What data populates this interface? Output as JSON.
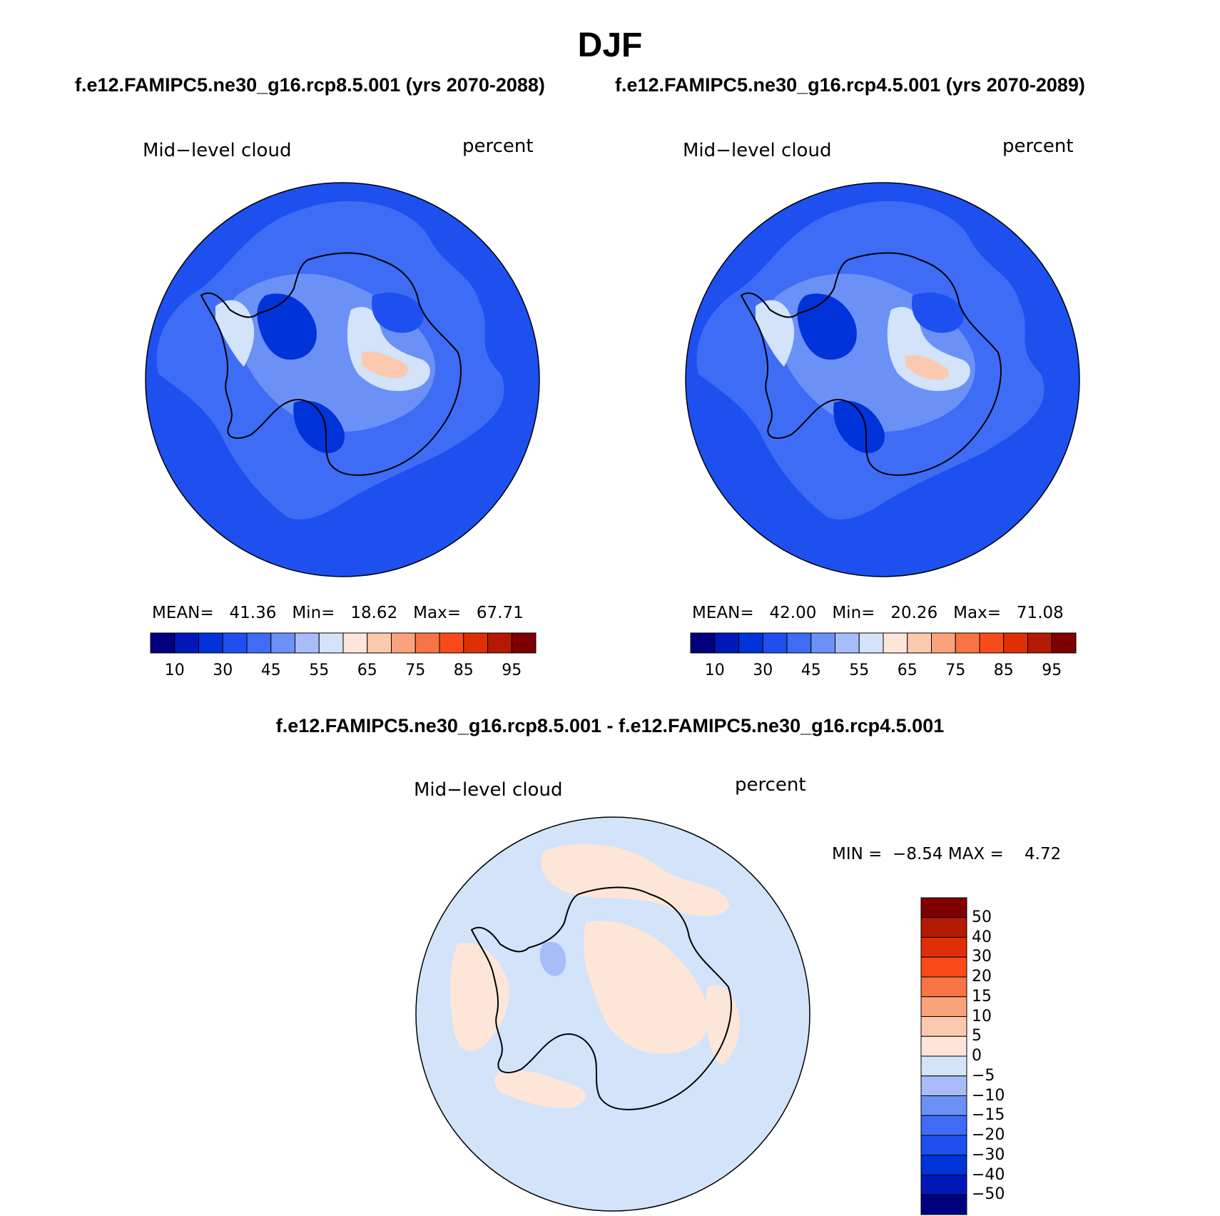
{
  "figure": {
    "season": "DJF",
    "subtitle_left": "f.e12.FAMIPC5.ne30_g16.rcp8.5.001 (yrs 2070-2088)",
    "subtitle_right": "f.e12.FAMIPC5.ne30_g16.rcp4.5.001 (yrs 2070-2089)",
    "diff_title": "f.e12.FAMIPC5.ne30_g16.rcp8.5.001 - f.e12.FAMIPC5.ne30_g16.rcp4.5.001"
  },
  "panels": [
    {
      "variable": "Mid−level cloud",
      "units": "percent",
      "mean_label": "MEAN=",
      "mean": "41.36",
      "min_label": "Min=",
      "min": "18.62",
      "max_label": "Max=",
      "max": "67.71"
    },
    {
      "variable": "Mid−level cloud",
      "units": "percent",
      "mean_label": "MEAN=",
      "mean": "42.00",
      "min_label": "Min=",
      "min": "20.26",
      "max_label": "Max=",
      "max": "71.08"
    }
  ],
  "diff_panel": {
    "variable": "Mid−level cloud",
    "units": "percent",
    "min_label": "MIN =",
    "min": "−8.54",
    "max_label": "MAX =",
    "max": "4.72"
  },
  "colorbar_abs": {
    "colors": [
      "#00007f",
      "#0018b8",
      "#0033d9",
      "#1e50f0",
      "#3e6cf5",
      "#6b91f7",
      "#a6bdfa",
      "#d2e3fa",
      "#fde6d8",
      "#fbc9b0",
      "#f9a37d",
      "#f77444",
      "#f94b1a",
      "#e02e07",
      "#b51a04",
      "#7f0000"
    ],
    "labels": [
      "10",
      "30",
      "45",
      "55",
      "65",
      "75",
      "85",
      "95"
    ]
  },
  "colorbar_diff": {
    "colors": [
      "#7f0000",
      "#b51a04",
      "#e02e07",
      "#f94b1a",
      "#f77444",
      "#f9a37d",
      "#fbc9b0",
      "#fde6d8",
      "#d2e3fa",
      "#a6bdfa",
      "#6b91f7",
      "#3e6cf5",
      "#1e50f0",
      "#0033d9",
      "#0018b8",
      "#00007f"
    ],
    "labels": [
      "50",
      "40",
      "30",
      "20",
      "15",
      "10",
      "5",
      "0",
      "−5",
      "−10",
      "−15",
      "−20",
      "−30",
      "−40",
      "−50"
    ]
  },
  "map_colors": {
    "ocean_abs": "#1e50f0",
    "ocean_diff": "#d2e3fa",
    "coast": "#000000"
  }
}
